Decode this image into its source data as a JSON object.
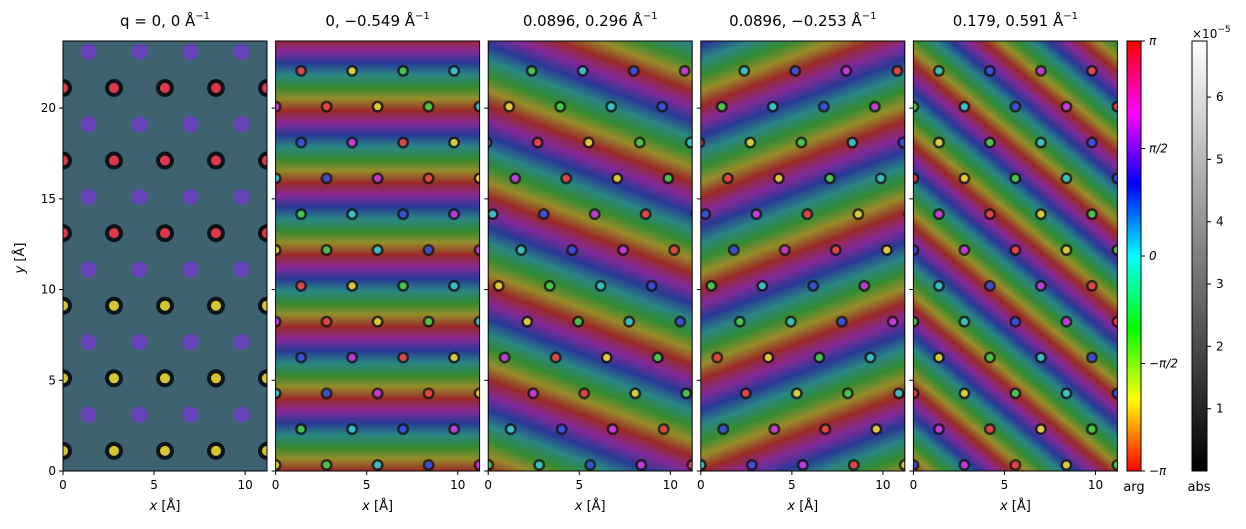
{
  "chart_data": {
    "type": "heatmap",
    "description_panels": [
      {
        "title": "q = 0, 0 Å",
        "title_sup": "−1",
        "xlabel_var": "x",
        "xlabel_unit": " [Å]",
        "ylabel_var": "y",
        "ylabel_unit": " [Å]",
        "pattern": "rows"
      },
      {
        "title": "0, −0.549 Å",
        "title_sup": "−1",
        "xlabel_var": "x",
        "xlabel_unit": " [Å]",
        "pattern": "horizontal_bands"
      },
      {
        "title": "0.0896, 0.296 Å",
        "title_sup": "−1",
        "xlabel_var": "x",
        "xlabel_unit": " [Å]",
        "pattern": "diagonal_bands"
      },
      {
        "title": "0.0896, −0.253 Å",
        "title_sup": "−1",
        "xlabel_var": "x",
        "xlabel_unit": " [Å]",
        "pattern": "diagonal_bands"
      },
      {
        "title": "0.179, 0.591 Å",
        "title_sup": "−1",
        "xlabel_var": "x",
        "xlabel_unit": " [Å]",
        "pattern": "steep_bands"
      }
    ],
    "xlim": [
      0,
      11.2
    ],
    "ylim": [
      0,
      23.7
    ],
    "xticks": [
      0,
      5,
      10
    ],
    "xtick_labels": [
      "0",
      "5",
      "10"
    ],
    "yticks": [
      0,
      5,
      10,
      15,
      20
    ],
    "ytick_labels": [
      "0",
      "5",
      "10",
      "15",
      "20"
    ],
    "arg_colorbar": {
      "label": "arg",
      "range": [
        -3.14159,
        3.14159
      ],
      "ticks": [
        {
          "value": -3.14159,
          "label": "−π"
        },
        {
          "value": -1.5708,
          "label": "−π/2"
        },
        {
          "value": 0,
          "label": "0"
        },
        {
          "value": 1.5708,
          "label": "π/2"
        },
        {
          "value": 3.14159,
          "label": "π"
        }
      ],
      "colormap_stops": [
        "#ff0000",
        "#ffff00",
        "#00ff00",
        "#00ffff",
        "#0000ff",
        "#ff00ff",
        "#ff0000"
      ]
    },
    "abs_colorbar": {
      "label": "abs",
      "multiplier": "×10",
      "multiplier_exp": "−5",
      "range": [
        0,
        6.9
      ],
      "ticks": [
        1,
        2,
        3,
        4,
        5,
        6
      ],
      "tick_labels": [
        "1",
        "2",
        "3",
        "4",
        "5",
        "6"
      ],
      "colormap_stops": [
        "#000000",
        "#ffffff"
      ]
    },
    "grid": false
  }
}
